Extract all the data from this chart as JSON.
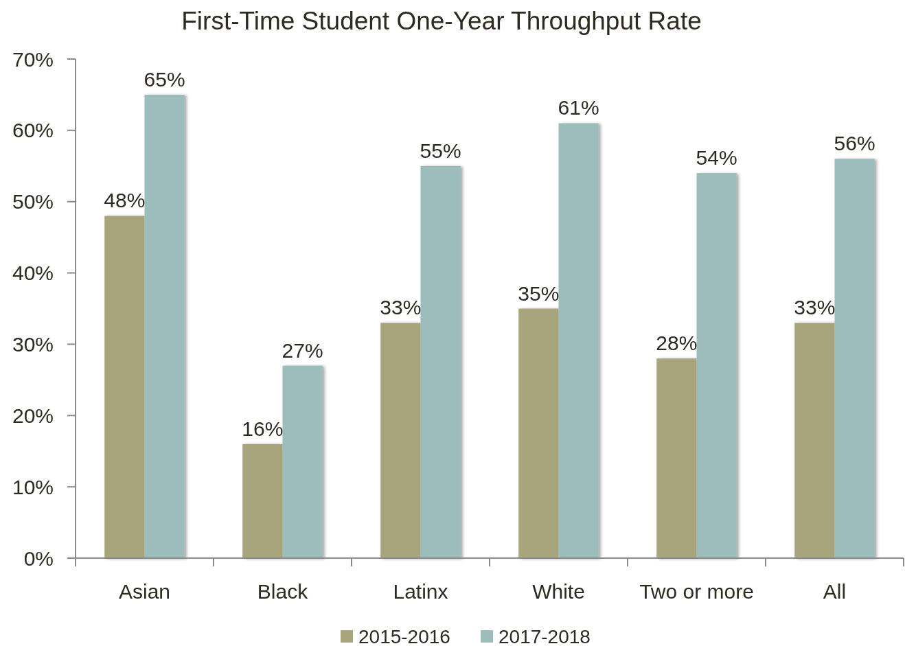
{
  "chart_data": {
    "type": "bar",
    "title": "First-Time Student One-Year Throughput Rate",
    "categories": [
      "Asian",
      "Black",
      "Latinx",
      "White",
      "Two or more",
      "All"
    ],
    "series": [
      {
        "name": "2015-2016",
        "color": "#a8a47c",
        "values": [
          48,
          16,
          33,
          35,
          28,
          33
        ],
        "value_labels": [
          "48%",
          "16%",
          "33%",
          "35%",
          "28%",
          "33%"
        ]
      },
      {
        "name": "2017-2018",
        "color": "#9dbdbd",
        "values": [
          65,
          27,
          55,
          61,
          54,
          56
        ],
        "value_labels": [
          "65%",
          "27%",
          "55%",
          "61%",
          "54%",
          "56%"
        ]
      }
    ],
    "ylim": [
      0,
      70
    ],
    "yticks": [
      {
        "value": 0,
        "label": "0%"
      },
      {
        "value": 10,
        "label": "10%"
      },
      {
        "value": 20,
        "label": "20%"
      },
      {
        "value": 30,
        "label": "30%"
      },
      {
        "value": 40,
        "label": "40%"
      },
      {
        "value": 50,
        "label": "50%"
      },
      {
        "value": 60,
        "label": "60%"
      },
      {
        "value": 70,
        "label": "70%"
      }
    ],
    "grid": false,
    "legend": "bottom"
  }
}
